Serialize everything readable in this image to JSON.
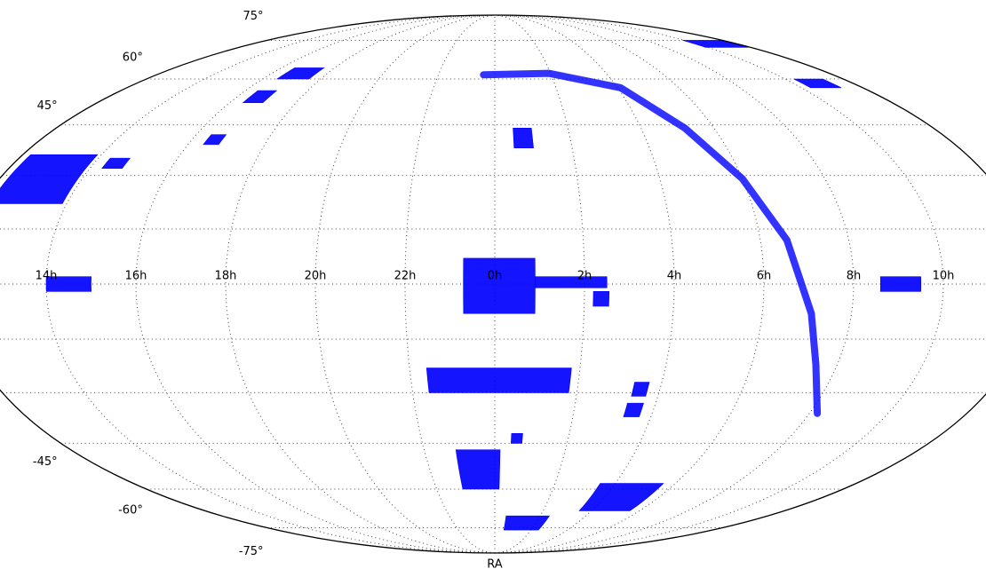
{
  "chart_data": {
    "type": "mollweide",
    "x_label": "RA",
    "color": "#0000ff",
    "grid": true,
    "ylim": [
      -90,
      90
    ],
    "xticks": [
      {
        "value": 14,
        "label": "14h"
      },
      {
        "value": 16,
        "label": "16h"
      },
      {
        "value": 18,
        "label": "18h"
      },
      {
        "value": 20,
        "label": "20h"
      },
      {
        "value": 22,
        "label": "22h"
      },
      {
        "value": 0,
        "label": "0h"
      },
      {
        "value": 2,
        "label": "2h"
      },
      {
        "value": 4,
        "label": "4h"
      },
      {
        "value": 6,
        "label": "6h"
      },
      {
        "value": 8,
        "label": "8h"
      },
      {
        "value": 10,
        "label": "10h"
      }
    ],
    "yticks": [
      {
        "value": -75,
        "label": "-75°"
      },
      {
        "value": -60,
        "label": "-60°"
      },
      {
        "value": -45,
        "label": "-45°"
      },
      {
        "value": -30,
        "label": null
      },
      {
        "value": -15,
        "label": null
      },
      {
        "value": 0,
        "label": null
      },
      {
        "value": 15,
        "label": null
      },
      {
        "value": 30,
        "label": null
      },
      {
        "value": 45,
        "label": "45°"
      },
      {
        "value": 60,
        "label": "60°"
      },
      {
        "value": 75,
        "label": "75°"
      }
    ],
    "regions": [
      {
        "ra": [
          12.2,
          13.9
        ],
        "dec": [
          22,
          36
        ]
      },
      {
        "ra": [
          23.3,
          0.9
        ],
        "dec": [
          -8,
          7
        ]
      },
      {
        "ra": [
          0.9,
          2.5
        ],
        "dec": [
          -1,
          2
        ]
      },
      {
        "ra": [
          22.4,
          1.8
        ],
        "dec": [
          -30,
          -23
        ]
      },
      {
        "ra": [
          22.9,
          0.15
        ],
        "dec": [
          -60,
          -47
        ]
      },
      {
        "ra": [
          0.5,
          2.4
        ],
        "dec": [
          -76,
          -70
        ]
      },
      {
        "ra": [
          3.5,
          5.6
        ],
        "dec": [
          -68,
          -58
        ]
      },
      {
        "ra": [
          8.6,
          9.5
        ],
        "dec": [
          -2,
          2
        ]
      },
      {
        "ra": [
          14,
          15
        ],
        "dec": [
          -2,
          2
        ]
      },
      {
        "ra": [
          0.5,
          1.0
        ],
        "dec": [
          38,
          44
        ]
      },
      {
        "ra": [
          2.2,
          2.55
        ],
        "dec": [
          -6,
          -2
        ]
      },
      {
        "ra": [
          16.5,
          17.6
        ],
        "dec": [
          60,
          64
        ]
      },
      {
        "ra": [
          16.4,
          17
        ],
        "dec": [
          52,
          56
        ]
      },
      {
        "ra": [
          10.3,
          11.3
        ],
        "dec": [
          57,
          60
        ]
      },
      {
        "ra": [
          9.9,
          11.9
        ],
        "dec": [
          72,
          75
        ]
      },
      {
        "ra": [
          3.35,
          3.7
        ],
        "dec": [
          -31,
          -27
        ]
      },
      {
        "ra": [
          3.3,
          3.7
        ],
        "dec": [
          -37,
          -33
        ]
      },
      {
        "ra": [
          16.4,
          16.8
        ],
        "dec": [
          39,
          42
        ]
      },
      {
        "ra": [
          14.3,
          14.8
        ],
        "dec": [
          32,
          35
        ]
      },
      {
        "ra": [
          0.45,
          0.75
        ],
        "dec": [
          -45,
          -42
        ]
      }
    ],
    "arc": {
      "ra": [
        23.6,
        1.95,
        4.1,
        5.2,
        6.0,
        6.6,
        7.1,
        7.5,
        8.2
      ],
      "dec": [
        61.5,
        62,
        57,
        44,
        29,
        12,
        -8,
        -22,
        -36
      ]
    }
  }
}
